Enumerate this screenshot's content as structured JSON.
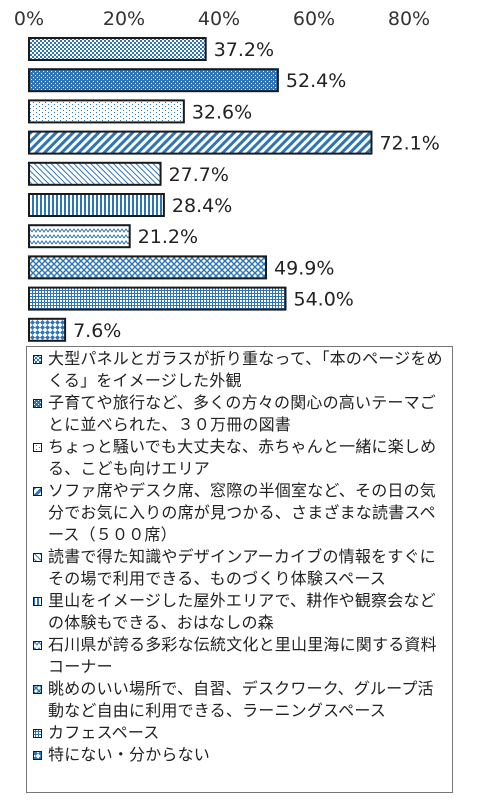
{
  "chart_data": {
    "type": "bar",
    "orientation": "horizontal",
    "xlim": [
      0,
      80
    ],
    "x_ticks": [
      "0%",
      "20%",
      "40%",
      "60%",
      "80%"
    ],
    "grid": false,
    "legend_position": "bottom",
    "categories": [
      "大型パネルとガラスが折り重なって、「本のページをめくる」をイメージした外観",
      "子育てや旅行など、多くの方々の関心の高いテーマごとに並べられた、３０万冊の図書",
      "ちょっと騒いでも大丈夫な、赤ちゃんと一緒に楽しめる、こども向けエリア",
      "ソファ席やデスク席、窓際の半個室など、その日の気分でお気に入りの席が見つかる、さまざまな読書スペース（５００席）",
      "読書で得た知識やデザインアーカイブの情報をすぐにその場で利用できる、ものづくり体験スペース",
      "里山をイメージした屋外エリアで、耕作や観察会などの体験もできる、おはなしの森",
      "石川県が誇る多彩な伝統文化と里山里海に関する資料コーナー",
      "眺めのいい場所で、自習、デスクワーク、グループ活動など自由に利用できる、ラーニングスペース",
      "カフェスペース",
      "特にない・分からない"
    ],
    "values": [
      37.2,
      52.4,
      32.6,
      72.1,
      27.7,
      28.4,
      21.2,
      49.9,
      54.0,
      7.6
    ],
    "value_labels": [
      "37.2%",
      "52.4%",
      "32.6%",
      "72.1%",
      "27.7%",
      "28.4%",
      "21.2%",
      "49.9%",
      "54.0%",
      "7.6%"
    ],
    "colors": {
      "pattern": "#2e75b6",
      "background": "#ffffff",
      "bar_border": "#1a1a1a",
      "legend_border": "#777777"
    }
  }
}
